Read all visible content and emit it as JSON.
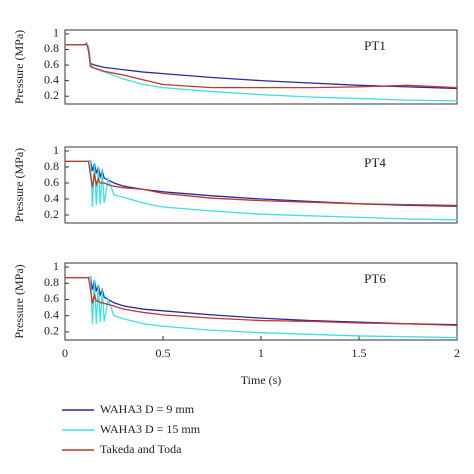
{
  "chart_data": [
    {
      "type": "line",
      "annotation": "PT1",
      "ylabel": "Pressure (MPa)",
      "x": [
        0,
        0.05,
        0.1,
        0.11,
        0.12,
        0.13,
        0.15,
        0.2,
        0.3,
        0.4,
        0.5,
        0.75,
        1.0,
        1.25,
        1.5,
        1.75,
        2.0
      ],
      "series": [
        {
          "color": "#2a2a9c",
          "values": [
            0.86,
            0.86,
            0.86,
            0.86,
            0.84,
            0.62,
            0.6,
            0.57,
            0.54,
            0.51,
            0.49,
            0.44,
            0.4,
            0.37,
            0.34,
            0.32,
            0.3
          ]
        },
        {
          "color": "#3fe0e0",
          "values": [
            0.86,
            0.86,
            0.86,
            0.86,
            0.84,
            0.6,
            0.56,
            0.51,
            0.42,
            0.35,
            0.31,
            0.26,
            0.22,
            0.19,
            0.17,
            0.15,
            0.14
          ]
        },
        {
          "color": "#c0392b",
          "values": [
            0.86,
            0.86,
            0.86,
            0.88,
            0.78,
            0.58,
            0.56,
            0.52,
            0.47,
            0.41,
            0.35,
            0.31,
            0.31,
            0.31,
            0.32,
            0.34,
            0.31
          ]
        }
      ],
      "xlim": [
        0,
        2
      ],
      "ylim": [
        0.1,
        1.05
      ],
      "yticks": [
        0.2,
        0.4,
        0.6,
        0.8,
        1
      ]
    },
    {
      "type": "line",
      "annotation": "PT4",
      "ylabel": "Pressure (MPa)",
      "x": [
        0,
        0.05,
        0.1,
        0.12,
        0.13,
        0.14,
        0.15,
        0.16,
        0.17,
        0.18,
        0.19,
        0.2,
        0.22,
        0.25,
        0.3,
        0.4,
        0.5,
        0.75,
        1.0,
        1.25,
        1.5,
        1.75,
        2.0
      ],
      "series": [
        {
          "color": "#2a2a9c",
          "values": [
            0.87,
            0.87,
            0.87,
            0.87,
            0.88,
            0.75,
            0.85,
            0.72,
            0.8,
            0.68,
            0.75,
            0.66,
            0.64,
            0.6,
            0.56,
            0.52,
            0.49,
            0.44,
            0.4,
            0.37,
            0.34,
            0.32,
            0.31
          ]
        },
        {
          "color": "#3fe0e0",
          "values": [
            0.87,
            0.87,
            0.87,
            0.87,
            0.88,
            0.3,
            0.85,
            0.32,
            0.8,
            0.33,
            0.75,
            0.35,
            0.65,
            0.45,
            0.42,
            0.35,
            0.3,
            0.25,
            0.21,
            0.19,
            0.17,
            0.15,
            0.14
          ]
        },
        {
          "color": "#c0392b",
          "values": [
            0.87,
            0.87,
            0.87,
            0.87,
            0.7,
            0.55,
            0.72,
            0.58,
            0.65,
            0.6,
            0.6,
            0.6,
            0.58,
            0.56,
            0.54,
            0.52,
            0.47,
            0.41,
            0.38,
            0.36,
            0.34,
            0.33,
            0.32
          ]
        }
      ],
      "xlim": [
        0,
        2
      ],
      "ylim": [
        0.1,
        1.05
      ],
      "yticks": [
        0.2,
        0.4,
        0.6,
        0.8,
        1
      ]
    },
    {
      "type": "line",
      "annotation": "PT6",
      "ylabel": "Pressure (MPa)",
      "xlabel": "Time (s)",
      "x": [
        0,
        0.05,
        0.1,
        0.12,
        0.13,
        0.14,
        0.15,
        0.16,
        0.17,
        0.18,
        0.19,
        0.2,
        0.22,
        0.25,
        0.3,
        0.4,
        0.5,
        0.75,
        1.0,
        1.25,
        1.5,
        1.75,
        2.0
      ],
      "series": [
        {
          "name": "WAHA3 D = 9 mm",
          "color": "#2a2a9c",
          "values": [
            0.87,
            0.87,
            0.87,
            0.87,
            0.88,
            0.72,
            0.84,
            0.7,
            0.78,
            0.66,
            0.72,
            0.63,
            0.6,
            0.56,
            0.52,
            0.48,
            0.46,
            0.41,
            0.37,
            0.34,
            0.32,
            0.3,
            0.29
          ]
        },
        {
          "name": "WAHA3 D = 15 mm",
          "color": "#3fe0e0",
          "values": [
            0.87,
            0.87,
            0.87,
            0.87,
            0.88,
            0.3,
            0.84,
            0.3,
            0.78,
            0.32,
            0.72,
            0.33,
            0.6,
            0.4,
            0.36,
            0.3,
            0.27,
            0.22,
            0.19,
            0.17,
            0.15,
            0.14,
            0.13
          ]
        },
        {
          "name": "Takeda and Toda",
          "color": "#c0392b",
          "values": [
            0.87,
            0.87,
            0.87,
            0.87,
            0.72,
            0.55,
            0.65,
            0.58,
            0.58,
            0.56,
            0.56,
            0.55,
            0.54,
            0.52,
            0.48,
            0.44,
            0.41,
            0.37,
            0.34,
            0.33,
            0.31,
            0.3,
            0.28
          ]
        }
      ],
      "xlim": [
        0,
        2
      ],
      "xticks": [
        0,
        0.5,
        1,
        1.5,
        2
      ],
      "ylim": [
        0.1,
        1.05
      ],
      "yticks": [
        0.2,
        0.4,
        0.6,
        0.8,
        1
      ]
    }
  ]
}
